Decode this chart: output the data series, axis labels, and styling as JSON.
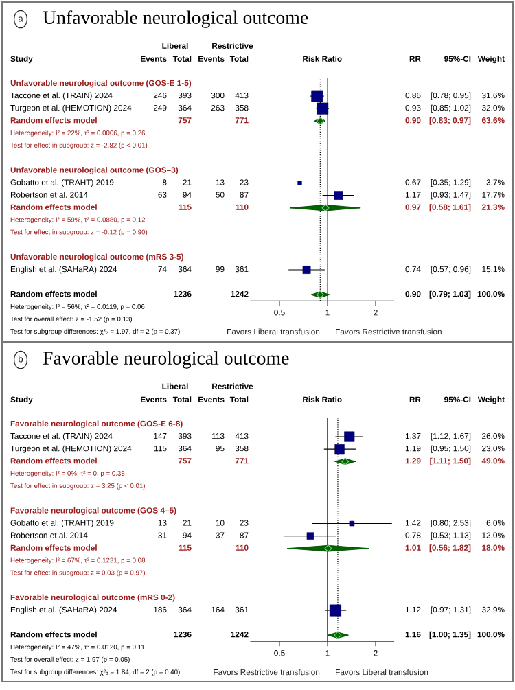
{
  "chart_data": [
    {
      "type": "other",
      "title": "Unfavorable neurological outcome",
      "subtitle": "a",
      "ylabel": "Study",
      "data_labels": true,
      "categories": [
        "Unfavorable neurological outcome (GOS-E 1-5)",
        "Taccone et al. (TRAIN) 2024",
        "Turgeon et al. (HEMOTION) 2024",
        "Random effects model",
        "Heterogeneity: I² = 22%, τ² = 0.0006, p = 0.26",
        "Test for effect in subgroup: z = -2.82 (p < 0.01)",
        null,
        "Unfavorable neurological outcome (GOS–3)",
        "Gobatto et al. (TRAHT) 2019",
        "Robertson et al. 2014",
        "Random effects model",
        "Heterogeneity: I² = 59%, τ² = 0.0880, p = 0.12",
        "Test for effect in subgroup: z = -0.12 (p = 0.90)",
        null,
        "Unfavorable neurological outcome (mRS 3-5)",
        "English et al. (SAHaRA) 2024",
        null,
        "Random effects model",
        "Heterogeneity: I² = 56%, τ² = 0.0119, p = 0.06",
        "Test for overall effect: z = -1.52 (p = 0.13)",
        "Test for subgroup differences: χ²₂ = 1.97, df = 2 (p = 0.37)"
      ],
      "colors": [
        "#9b1c1c",
        "#000000",
        "#000000",
        "#9b1c1c",
        "#9b1c1c",
        "#9b1c1c",
        null,
        "#9b1c1c",
        "#000000",
        "#000000",
        "#9b1c1c",
        "#9b1c1c",
        "#9b1c1c",
        null,
        "#9b1c1c",
        "#000000",
        null,
        "#000000",
        "#000000",
        "#000000",
        "#000000"
      ],
      "series": [
        {
          "name": "Events",
          "values": [
            null,
            246,
            249,
            null,
            null,
            null,
            null,
            null,
            8,
            63,
            null,
            null,
            null,
            null,
            null,
            74,
            null,
            null,
            null,
            null,
            null
          ]
        },
        {
          "name": "Total",
          "values": [
            null,
            393,
            364,
            757,
            null,
            null,
            null,
            null,
            21,
            94,
            115,
            null,
            null,
            null,
            null,
            364,
            null,
            1236,
            null,
            null,
            null
          ]
        },
        {
          "name": "Events",
          "values": [
            null,
            300,
            263,
            null,
            null,
            null,
            null,
            null,
            13,
            50,
            null,
            null,
            null,
            null,
            null,
            99,
            null,
            null,
            null,
            null,
            null
          ]
        },
        {
          "name": "Total",
          "values": [
            null,
            413,
            358,
            771,
            null,
            null,
            null,
            null,
            23,
            87,
            110,
            null,
            null,
            null,
            null,
            361,
            null,
            1242,
            null,
            null,
            null
          ]
        },
        {
          "name": "RR",
          "values": [
            null,
            0.86,
            0.93,
            0.9,
            null,
            null,
            null,
            null,
            0.67,
            1.17,
            0.97,
            null,
            null,
            null,
            null,
            0.74,
            null,
            0.9,
            null,
            null,
            null
          ],
          "value_labels": [
            null,
            "0.86",
            "0.93",
            "0.90",
            null,
            null,
            null,
            null,
            "0.67",
            "1.17",
            "0.97",
            null,
            null,
            null,
            null,
            "0.74",
            null,
            "0.90",
            null,
            null,
            null
          ]
        },
        {
          "name": "95%-CI",
          "values": [
            null,
            0.78,
            0.85,
            0.83,
            null,
            null,
            null,
            null,
            0.35,
            0.93,
            0.58,
            null,
            null,
            null,
            null,
            0.57,
            null,
            0.79,
            null,
            null,
            null
          ],
          "value_labels": [
            null,
            "[0.78; 0.95]",
            "[0.85; 1.02]",
            "[0.83; 0.97]",
            null,
            null,
            null,
            null,
            "[0.35; 1.29]",
            "[0.93; 1.47]",
            "[0.58; 1.61]",
            null,
            null,
            null,
            null,
            "[0.57; 0.96]",
            null,
            "[0.79; 1.03]",
            null,
            null,
            null
          ]
        },
        {
          "name": "Weight",
          "values": [
            null,
            31.6,
            32.0,
            63.6,
            null,
            null,
            null,
            null,
            3.7,
            17.7,
            21.3,
            null,
            null,
            null,
            null,
            15.1,
            null,
            100.0,
            null,
            null,
            null
          ],
          "value_labels": [
            null,
            "31.6%",
            "32.0%",
            "63.6%",
            null,
            null,
            null,
            null,
            "3.7%",
            "17.7%",
            "21.3%",
            null,
            null,
            null,
            null,
            "15.1%",
            null,
            "100.0%",
            null,
            null,
            null
          ]
        }
      ],
      "annotations": [
        "Liberal",
        "Restrictive"
      ]
    },
    {
      "type": "scatter",
      "orientation": "horizontal",
      "xlabel": "Risk Ratio",
      "log": "x",
      "xlim": [
        0.33,
        2.6
      ],
      "xticks": [
        0.5,
        1,
        2
      ],
      "grid": false,
      "legend": false,
      "tick_labels": "x",
      "categories": [
        null,
        null,
        null,
        null,
        null,
        null,
        null,
        null,
        null,
        null,
        null,
        null,
        null,
        null,
        null,
        null,
        null,
        null
      ],
      "series": [
        {
          "marker": "square",
          "color": "#000080",
          "values": [
            null,
            0.86,
            0.93,
            null,
            null,
            null,
            null,
            null,
            0.67,
            1.17,
            null,
            null,
            null,
            null,
            null,
            0.74,
            null,
            null
          ],
          "errors": [
            null,
            [
              0.78,
              0.95
            ],
            [
              0.85,
              1.02
            ],
            null,
            null,
            null,
            null,
            null,
            [
              0.35,
              1.29
            ],
            [
              0.93,
              1.47
            ],
            null,
            null,
            null,
            null,
            null,
            [
              0.57,
              0.96
            ],
            null,
            null
          ],
          "sizes": [
            null,
            0.99,
            1,
            null,
            null,
            null,
            null,
            null,
            0.12,
            0.55,
            null,
            null,
            null,
            null,
            null,
            0.47,
            null,
            null
          ]
        },
        {
          "marker": "diamond",
          "color": "#006400",
          "values": [
            null,
            null,
            null,
            0.9,
            null,
            null,
            null,
            null,
            null,
            null,
            0.97,
            null,
            null,
            null,
            null,
            null,
            null,
            0.9
          ],
          "errors": [
            null,
            null,
            null,
            [
              0.83,
              0.97
            ],
            null,
            null,
            null,
            null,
            null,
            null,
            [
              0.58,
              1.61
            ],
            null,
            null,
            null,
            null,
            null,
            null,
            [
              0.79,
              1.03
            ]
          ]
        }
      ],
      "ref_lines": [
        {
          "axis": "x",
          "value": 1,
          "line_style": "solid",
          "color": "#555555"
        },
        {
          "axis": "x",
          "value": 0.9,
          "line_style": "dotted",
          "color": "#000000"
        }
      ],
      "annotations": [
        "Favors Liberal transfusion",
        "Favors Restrictive transfusion"
      ]
    },
    {
      "type": "other",
      "title": "Favorable neurological outcome",
      "subtitle": "b",
      "ylabel": "Study",
      "data_labels": true,
      "categories": [
        "Favorable neurological outcome (GOS-E 6-8)",
        "Taccone et al. (TRAIN) 2024",
        "Turgeon et al. (HEMOTION) 2024",
        "Random effects model",
        "Heterogeneity: I² = 0%, τ² = 0, p = 0.38",
        "Test for effect in subgroup: z = 3.25 (p < 0.01)",
        null,
        "Favorable neurological outcome (GOS 4–5)",
        "Gobatto et al. (TRAHT) 2019",
        "Robertson et al. 2014",
        "Random effects model",
        "Heterogeneity: I² = 67%, τ² = 0.1231, p = 0.08",
        "Test for effect in subgroup: z = 0.03 (p = 0.97)",
        null,
        "Favorable neurological outcome (mRS 0-2)",
        "English et al. (SAHaRA) 2024",
        null,
        "Random effects model",
        "Heterogeneity: I² = 47%, τ² = 0.0120, p = 0.11",
        "Test for overall effect: z = 1.97 (p = 0.05)",
        "Test for subgroup differences: χ²₂ = 1.84, df = 2 (p = 0.40)"
      ],
      "colors": [
        "#9b1c1c",
        "#000000",
        "#000000",
        "#9b1c1c",
        "#9b1c1c",
        "#9b1c1c",
        null,
        "#9b1c1c",
        "#000000",
        "#000000",
        "#9b1c1c",
        "#9b1c1c",
        "#9b1c1c",
        null,
        "#9b1c1c",
        "#000000",
        null,
        "#000000",
        "#000000",
        "#000000",
        "#000000"
      ],
      "series": [
        {
          "name": "Events",
          "values": [
            null,
            147,
            115,
            null,
            null,
            null,
            null,
            null,
            13,
            31,
            null,
            null,
            null,
            null,
            null,
            186,
            null,
            null,
            null,
            null,
            null
          ]
        },
        {
          "name": "Total",
          "values": [
            null,
            393,
            364,
            757,
            null,
            null,
            null,
            null,
            21,
            94,
            115,
            null,
            null,
            null,
            null,
            364,
            null,
            1236,
            null,
            null,
            null
          ]
        },
        {
          "name": "Events",
          "values": [
            null,
            113,
            95,
            null,
            null,
            null,
            null,
            null,
            10,
            37,
            null,
            null,
            null,
            null,
            null,
            164,
            null,
            null,
            null,
            null,
            null
          ]
        },
        {
          "name": "Total",
          "values": [
            null,
            413,
            358,
            771,
            null,
            null,
            null,
            null,
            23,
            87,
            110,
            null,
            null,
            null,
            null,
            361,
            null,
            1242,
            null,
            null,
            null
          ]
        },
        {
          "name": "RR",
          "values": [
            null,
            1.37,
            1.19,
            1.29,
            null,
            null,
            null,
            null,
            1.42,
            0.78,
            1.01,
            null,
            null,
            null,
            null,
            1.12,
            null,
            1.16,
            null,
            null,
            null
          ],
          "value_labels": [
            null,
            "1.37",
            "1.19",
            "1.29",
            null,
            null,
            null,
            null,
            "1.42",
            "0.78",
            "1.01",
            null,
            null,
            null,
            null,
            "1.12",
            null,
            "1.16",
            null,
            null,
            null
          ]
        },
        {
          "name": "95%-CI",
          "values": [
            null,
            1.12,
            0.95,
            1.11,
            null,
            null,
            null,
            null,
            0.8,
            0.53,
            0.56,
            null,
            null,
            null,
            null,
            0.97,
            null,
            1.0,
            null,
            null,
            null
          ],
          "value_labels": [
            null,
            "[1.12; 1.67]",
            "[0.95; 1.50]",
            "[1.11; 1.50]",
            null,
            null,
            null,
            null,
            "[0.80; 2.53]",
            "[0.53; 1.13]",
            "[0.56; 1.82]",
            null,
            null,
            null,
            null,
            "[0.97; 1.31]",
            null,
            "[1.00; 1.35]",
            null,
            null,
            null
          ]
        },
        {
          "name": "Weight",
          "values": [
            null,
            26.0,
            23.0,
            49.0,
            null,
            null,
            null,
            null,
            6.0,
            12.0,
            18.0,
            null,
            null,
            null,
            null,
            32.9,
            null,
            100.0,
            null,
            null,
            null
          ],
          "value_labels": [
            null,
            "26.0%",
            "23.0%",
            "49.0%",
            null,
            null,
            null,
            null,
            "6.0%",
            "12.0%",
            "18.0%",
            null,
            null,
            null,
            null,
            "32.9%",
            null,
            "100.0%",
            null,
            null,
            null
          ]
        }
      ],
      "annotations": [
        "Liberal",
        "Restrictive"
      ]
    },
    {
      "type": "scatter",
      "orientation": "horizontal",
      "xlabel": "Risk Ratio",
      "log": "x",
      "xlim": [
        0.33,
        2.6
      ],
      "xticks": [
        0.5,
        1,
        2
      ],
      "grid": false,
      "legend": false,
      "tick_labels": "x",
      "categories": [
        null,
        null,
        null,
        null,
        null,
        null,
        null,
        null,
        null,
        null,
        null,
        null,
        null,
        null,
        null,
        null,
        null,
        null
      ],
      "series": [
        {
          "marker": "square",
          "color": "#000080",
          "values": [
            null,
            1.37,
            1.19,
            null,
            null,
            null,
            null,
            null,
            1.42,
            0.78,
            null,
            null,
            null,
            null,
            null,
            1.12,
            null,
            null
          ],
          "errors": [
            null,
            [
              1.12,
              1.67
            ],
            [
              0.95,
              1.5
            ],
            null,
            null,
            null,
            null,
            null,
            [
              0.8,
              2.53
            ],
            [
              0.53,
              1.13
            ],
            null,
            null,
            null,
            null,
            null,
            [
              0.97,
              1.31
            ],
            null,
            null
          ],
          "sizes": [
            null,
            0.79,
            0.7,
            null,
            null,
            null,
            null,
            null,
            0.18,
            0.36,
            null,
            null,
            null,
            null,
            null,
            1,
            null,
            null
          ]
        },
        {
          "marker": "diamond",
          "color": "#006400",
          "values": [
            null,
            null,
            null,
            1.29,
            null,
            null,
            null,
            null,
            null,
            null,
            1.01,
            null,
            null,
            null,
            null,
            null,
            null,
            1.16
          ],
          "errors": [
            null,
            null,
            null,
            [
              1.11,
              1.5
            ],
            null,
            null,
            null,
            null,
            null,
            null,
            [
              0.56,
              1.82
            ],
            null,
            null,
            null,
            null,
            null,
            null,
            [
              1.0,
              1.35
            ]
          ]
        }
      ],
      "ref_lines": [
        {
          "axis": "x",
          "value": 1,
          "line_style": "solid",
          "color": "#000000"
        },
        {
          "axis": "x",
          "value": 1.16,
          "line_style": "dotted",
          "color": "#000000"
        }
      ],
      "annotations": [
        "Favors Restrictive transfusion",
        "Favors Liberal transfusion"
      ]
    }
  ]
}
